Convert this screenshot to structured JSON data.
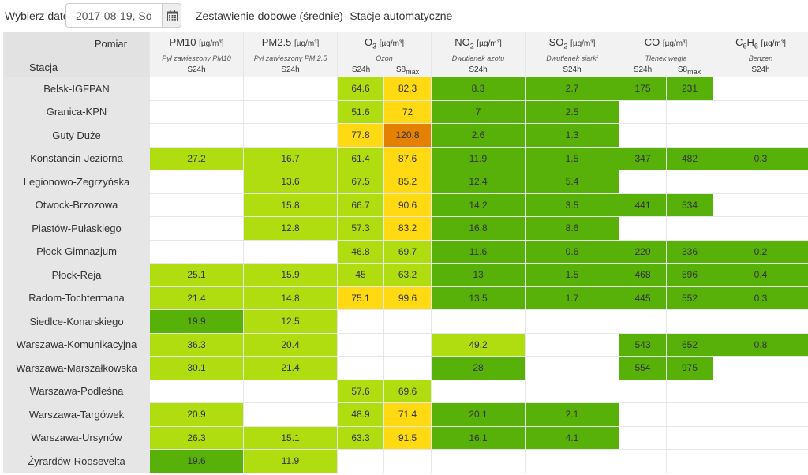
{
  "toolbar": {
    "date_label": "Wybierz datę:",
    "date_value": "2017-08-19, So",
    "title": "Zestawienie dobowe (średnie)- Stacje automatyczne"
  },
  "header": {
    "corner_measure": "Pomiar",
    "corner_station": "Stacja",
    "pollutants": [
      {
        "name": "PM10",
        "sub": "",
        "unit": "[µg/m³]",
        "desc": "Pył zawieszony PM10",
        "avg": [
          "S24h"
        ]
      },
      {
        "name": "PM2.5",
        "sub": "",
        "unit": "[µg/m³]",
        "desc": "Pył zawieszony PM 2.5",
        "avg": [
          "S24h"
        ]
      },
      {
        "name": "O",
        "sub": "3",
        "unit": "[µg/m³]",
        "desc": "Ozon",
        "avg": [
          "S24h",
          "S8max"
        ]
      },
      {
        "name": "NO",
        "sub": "2",
        "unit": "[µg/m³]",
        "desc": "Dwutlenek azotu",
        "avg": [
          "S24h"
        ]
      },
      {
        "name": "SO",
        "sub": "2",
        "unit": "[µg/m³]",
        "desc": "Dwutlenek siarki",
        "avg": [
          "S24h"
        ]
      },
      {
        "name": "CO",
        "sub": "",
        "unit": "[µg/m³]",
        "desc": "Tlenek węgla",
        "avg": [
          "S24h",
          "S8max"
        ]
      },
      {
        "name": "C6H6",
        "sub": "",
        "unit": "[µg/m³]",
        "desc": "Benzen",
        "avg": [
          "S24h"
        ]
      }
    ]
  },
  "colors": {
    "very_good": "#57b108",
    "good": "#b0dd10",
    "moderate": "#ffd911",
    "sufficient": "#e58100",
    "empty": "#ffffff",
    "station_bg": "#e6e6e6"
  },
  "columns": [
    "PM10 S24h",
    "PM2.5 S24h",
    "O3 S24h",
    "O3 S8max",
    "NO2 S24h",
    "SO2 S24h",
    "CO S24h",
    "CO S8max",
    "C6H6 S24h"
  ],
  "rows": [
    {
      "station": "Belsk-IGFPAN",
      "cells": [
        {
          "v": "",
          "c": "empty"
        },
        {
          "v": "",
          "c": "empty"
        },
        {
          "v": "64.6",
          "c": "good"
        },
        {
          "v": "82.3",
          "c": "moderate"
        },
        {
          "v": "8.3",
          "c": "very_good"
        },
        {
          "v": "2.7",
          "c": "very_good"
        },
        {
          "v": "175",
          "c": "very_good"
        },
        {
          "v": "231",
          "c": "very_good"
        },
        {
          "v": "",
          "c": "empty"
        }
      ]
    },
    {
      "station": "Granica-KPN",
      "cells": [
        {
          "v": "",
          "c": "empty"
        },
        {
          "v": "",
          "c": "empty"
        },
        {
          "v": "51.6",
          "c": "good"
        },
        {
          "v": "72",
          "c": "moderate"
        },
        {
          "v": "7",
          "c": "very_good"
        },
        {
          "v": "2.5",
          "c": "very_good"
        },
        {
          "v": "",
          "c": "empty"
        },
        {
          "v": "",
          "c": "empty"
        },
        {
          "v": "",
          "c": "empty"
        }
      ]
    },
    {
      "station": "Guty Duże",
      "cells": [
        {
          "v": "",
          "c": "empty"
        },
        {
          "v": "",
          "c": "empty"
        },
        {
          "v": "77.8",
          "c": "moderate"
        },
        {
          "v": "120.8",
          "c": "sufficient"
        },
        {
          "v": "2.6",
          "c": "very_good"
        },
        {
          "v": "1.3",
          "c": "very_good"
        },
        {
          "v": "",
          "c": "empty"
        },
        {
          "v": "",
          "c": "empty"
        },
        {
          "v": "",
          "c": "empty"
        }
      ]
    },
    {
      "station": "Konstancin-Jeziorna",
      "cells": [
        {
          "v": "27.2",
          "c": "good"
        },
        {
          "v": "16.7",
          "c": "good"
        },
        {
          "v": "61.4",
          "c": "good"
        },
        {
          "v": "87.6",
          "c": "moderate"
        },
        {
          "v": "11.9",
          "c": "very_good"
        },
        {
          "v": "1.5",
          "c": "very_good"
        },
        {
          "v": "347",
          "c": "very_good"
        },
        {
          "v": "482",
          "c": "very_good"
        },
        {
          "v": "0.3",
          "c": "very_good"
        }
      ]
    },
    {
      "station": "Legionowo-Zegrzyńska",
      "cells": [
        {
          "v": "",
          "c": "empty"
        },
        {
          "v": "13.6",
          "c": "good"
        },
        {
          "v": "67.5",
          "c": "good"
        },
        {
          "v": "85.2",
          "c": "moderate"
        },
        {
          "v": "12.4",
          "c": "very_good"
        },
        {
          "v": "5.4",
          "c": "very_good"
        },
        {
          "v": "",
          "c": "empty"
        },
        {
          "v": "",
          "c": "empty"
        },
        {
          "v": "",
          "c": "empty"
        }
      ]
    },
    {
      "station": "Otwock-Brzozowa",
      "cells": [
        {
          "v": "",
          "c": "empty"
        },
        {
          "v": "15.8",
          "c": "good"
        },
        {
          "v": "66.7",
          "c": "good"
        },
        {
          "v": "90.6",
          "c": "moderate"
        },
        {
          "v": "14.2",
          "c": "very_good"
        },
        {
          "v": "3.5",
          "c": "very_good"
        },
        {
          "v": "441",
          "c": "very_good"
        },
        {
          "v": "534",
          "c": "very_good"
        },
        {
          "v": "",
          "c": "empty"
        }
      ]
    },
    {
      "station": "Piastów-Pułaskiego",
      "cells": [
        {
          "v": "",
          "c": "empty"
        },
        {
          "v": "12.8",
          "c": "good"
        },
        {
          "v": "57.3",
          "c": "good"
        },
        {
          "v": "83.2",
          "c": "moderate"
        },
        {
          "v": "16.8",
          "c": "very_good"
        },
        {
          "v": "8.6",
          "c": "very_good"
        },
        {
          "v": "",
          "c": "empty"
        },
        {
          "v": "",
          "c": "empty"
        },
        {
          "v": "",
          "c": "empty"
        }
      ]
    },
    {
      "station": "Płock-Gimnazjum",
      "cells": [
        {
          "v": "",
          "c": "empty"
        },
        {
          "v": "",
          "c": "empty"
        },
        {
          "v": "46.8",
          "c": "good"
        },
        {
          "v": "69.7",
          "c": "good"
        },
        {
          "v": "11.6",
          "c": "very_good"
        },
        {
          "v": "0.6",
          "c": "very_good"
        },
        {
          "v": "220",
          "c": "very_good"
        },
        {
          "v": "336",
          "c": "very_good"
        },
        {
          "v": "0.2",
          "c": "very_good"
        }
      ]
    },
    {
      "station": "Płock-Reja",
      "cells": [
        {
          "v": "25.1",
          "c": "good"
        },
        {
          "v": "15.9",
          "c": "good"
        },
        {
          "v": "45",
          "c": "good"
        },
        {
          "v": "63.2",
          "c": "good"
        },
        {
          "v": "13",
          "c": "very_good"
        },
        {
          "v": "1.5",
          "c": "very_good"
        },
        {
          "v": "468",
          "c": "very_good"
        },
        {
          "v": "596",
          "c": "very_good"
        },
        {
          "v": "0.4",
          "c": "very_good"
        }
      ]
    },
    {
      "station": "Radom-Tochtermana",
      "cells": [
        {
          "v": "21.4",
          "c": "good"
        },
        {
          "v": "14.8",
          "c": "good"
        },
        {
          "v": "75.1",
          "c": "moderate"
        },
        {
          "v": "99.6",
          "c": "moderate"
        },
        {
          "v": "13.5",
          "c": "very_good"
        },
        {
          "v": "1.7",
          "c": "very_good"
        },
        {
          "v": "445",
          "c": "very_good"
        },
        {
          "v": "552",
          "c": "very_good"
        },
        {
          "v": "0.3",
          "c": "very_good"
        }
      ]
    },
    {
      "station": "Siedlce-Konarskiego",
      "cells": [
        {
          "v": "19.9",
          "c": "very_good"
        },
        {
          "v": "12.5",
          "c": "good"
        },
        {
          "v": "",
          "c": "empty"
        },
        {
          "v": "",
          "c": "empty"
        },
        {
          "v": "",
          "c": "empty"
        },
        {
          "v": "",
          "c": "empty"
        },
        {
          "v": "",
          "c": "empty"
        },
        {
          "v": "",
          "c": "empty"
        },
        {
          "v": "",
          "c": "empty"
        }
      ]
    },
    {
      "station": "Warszawa-Komunikacyjna",
      "cells": [
        {
          "v": "36.3",
          "c": "good"
        },
        {
          "v": "20.4",
          "c": "good"
        },
        {
          "v": "",
          "c": "empty"
        },
        {
          "v": "",
          "c": "empty"
        },
        {
          "v": "49.2",
          "c": "good"
        },
        {
          "v": "",
          "c": "empty"
        },
        {
          "v": "543",
          "c": "very_good"
        },
        {
          "v": "652",
          "c": "very_good"
        },
        {
          "v": "0.8",
          "c": "very_good"
        }
      ]
    },
    {
      "station": "Warszawa-Marszałkowska",
      "cells": [
        {
          "v": "30.1",
          "c": "good"
        },
        {
          "v": "21.4",
          "c": "good"
        },
        {
          "v": "",
          "c": "empty"
        },
        {
          "v": "",
          "c": "empty"
        },
        {
          "v": "28",
          "c": "very_good"
        },
        {
          "v": "",
          "c": "empty"
        },
        {
          "v": "554",
          "c": "very_good"
        },
        {
          "v": "975",
          "c": "very_good"
        },
        {
          "v": "",
          "c": "empty"
        }
      ]
    },
    {
      "station": "Warszawa-Podleśna",
      "cells": [
        {
          "v": "",
          "c": "empty"
        },
        {
          "v": "",
          "c": "empty"
        },
        {
          "v": "57.6",
          "c": "good"
        },
        {
          "v": "69.6",
          "c": "good"
        },
        {
          "v": "",
          "c": "empty"
        },
        {
          "v": "",
          "c": "empty"
        },
        {
          "v": "",
          "c": "empty"
        },
        {
          "v": "",
          "c": "empty"
        },
        {
          "v": "",
          "c": "empty"
        }
      ]
    },
    {
      "station": "Warszawa-Targówek",
      "cells": [
        {
          "v": "20.9",
          "c": "good"
        },
        {
          "v": "",
          "c": "empty"
        },
        {
          "v": "48.9",
          "c": "good"
        },
        {
          "v": "71.4",
          "c": "moderate"
        },
        {
          "v": "20.1",
          "c": "very_good"
        },
        {
          "v": "2.1",
          "c": "very_good"
        },
        {
          "v": "",
          "c": "empty"
        },
        {
          "v": "",
          "c": "empty"
        },
        {
          "v": "",
          "c": "empty"
        }
      ]
    },
    {
      "station": "Warszawa-Ursynów",
      "cells": [
        {
          "v": "26.3",
          "c": "good"
        },
        {
          "v": "15.1",
          "c": "good"
        },
        {
          "v": "63.3",
          "c": "good"
        },
        {
          "v": "91.5",
          "c": "moderate"
        },
        {
          "v": "16.1",
          "c": "very_good"
        },
        {
          "v": "4.1",
          "c": "very_good"
        },
        {
          "v": "",
          "c": "empty"
        },
        {
          "v": "",
          "c": "empty"
        },
        {
          "v": "",
          "c": "empty"
        }
      ]
    },
    {
      "station": "Żyrardów-Roosevelta",
      "cells": [
        {
          "v": "19.6",
          "c": "very_good"
        },
        {
          "v": "11.9",
          "c": "good"
        },
        {
          "v": "",
          "c": "empty"
        },
        {
          "v": "",
          "c": "empty"
        },
        {
          "v": "",
          "c": "empty"
        },
        {
          "v": "",
          "c": "empty"
        },
        {
          "v": "",
          "c": "empty"
        },
        {
          "v": "",
          "c": "empty"
        },
        {
          "v": "",
          "c": "empty"
        }
      ]
    }
  ]
}
